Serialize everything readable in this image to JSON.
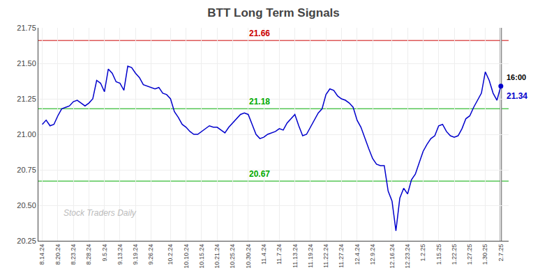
{
  "chart_data": {
    "type": "line",
    "title": "BTT Long Term Signals",
    "color": "#0000cc",
    "categories": [
      "8.14.24",
      null,
      null,
      null,
      "8.20.24",
      null,
      null,
      null,
      "8.23.24",
      null,
      null,
      null,
      "8.28.24",
      null,
      null,
      null,
      "9.5.24",
      null,
      null,
      null,
      "9.13.24",
      null,
      null,
      null,
      "9.19.24",
      null,
      null,
      null,
      "9.26.24",
      null,
      null,
      null,
      null,
      "10.2.24",
      null,
      null,
      null,
      "10.10.24",
      null,
      null,
      null,
      "10.15.24",
      null,
      null,
      null,
      "10.21.24",
      null,
      null,
      null,
      "10.25.24",
      null,
      null,
      null,
      "10.30.24",
      null,
      null,
      null,
      "11.4.24",
      null,
      null,
      null,
      "11.7.24",
      null,
      null,
      null,
      "11.13.24",
      null,
      null,
      null,
      "11.19.24",
      null,
      null,
      null,
      "11.22.24",
      null,
      null,
      null,
      "11.27.24",
      null,
      null,
      null,
      "12.4.24",
      null,
      null,
      null,
      "12.9.24",
      null,
      null,
      null,
      null,
      "12.16.24",
      null,
      null,
      null,
      "12.23.24",
      null,
      null,
      null,
      "1.2.25",
      null,
      null,
      null,
      "1.15.25",
      null,
      null,
      null,
      "1.22.25",
      null,
      null,
      null,
      "1.27.25",
      null,
      null,
      null,
      "1.30.25",
      null,
      null,
      null,
      "2.7.25"
    ],
    "values": [
      21.07,
      21.1,
      21.06,
      21.07,
      21.13,
      21.18,
      21.19,
      21.2,
      21.23,
      21.24,
      21.22,
      21.2,
      21.22,
      21.25,
      21.38,
      21.36,
      21.3,
      21.46,
      21.43,
      21.37,
      21.36,
      21.31,
      21.48,
      21.47,
      21.43,
      21.4,
      21.35,
      21.34,
      21.33,
      21.32,
      21.33,
      21.29,
      21.28,
      21.25,
      21.16,
      21.12,
      21.07,
      21.05,
      21.02,
      21.0,
      21.0,
      21.02,
      21.04,
      21.06,
      21.05,
      21.05,
      21.03,
      21.01,
      21.05,
      21.08,
      21.11,
      21.14,
      21.15,
      21.14,
      21.07,
      21.0,
      20.97,
      20.98,
      21.0,
      21.01,
      21.02,
      21.04,
      21.03,
      21.08,
      21.11,
      21.14,
      21.06,
      20.99,
      21.0,
      21.05,
      21.1,
      21.15,
      21.18,
      21.28,
      21.32,
      21.31,
      21.27,
      21.25,
      21.24,
      21.22,
      21.19,
      21.1,
      21.05,
      20.97,
      20.9,
      20.83,
      20.79,
      20.78,
      20.78,
      20.6,
      20.53,
      20.32,
      20.55,
      20.62,
      20.58,
      20.68,
      20.72,
      20.8,
      20.88,
      20.93,
      20.97,
      20.99,
      21.06,
      21.07,
      21.02,
      20.99,
      20.98,
      20.99,
      21.04,
      21.11,
      21.13,
      21.19,
      21.24,
      21.29,
      21.44,
      21.38,
      21.29,
      21.24,
      21.34
    ],
    "ylim": [
      20.25,
      21.75
    ],
    "yticks": [
      20.25,
      {
        "value": 20.5,
        "label": "20.50"
      },
      20.75,
      {
        "value": 21,
        "label": "21.00"
      },
      21.25,
      {
        "value": 21.5,
        "label": "21.50"
      },
      21.75
    ],
    "grid": true,
    "hlines": [
      {
        "value": 21.66,
        "label": "21.66",
        "color": "#cc0000"
      },
      {
        "value": 21.18,
        "label": "21.18",
        "color": "#00aa00"
      },
      {
        "value": 20.67,
        "label": "20.67",
        "color": "#00aa00"
      }
    ],
    "last_point": {
      "time": "16:00",
      "value": 21.34
    },
    "watermark": "Stock Traders Daily"
  }
}
